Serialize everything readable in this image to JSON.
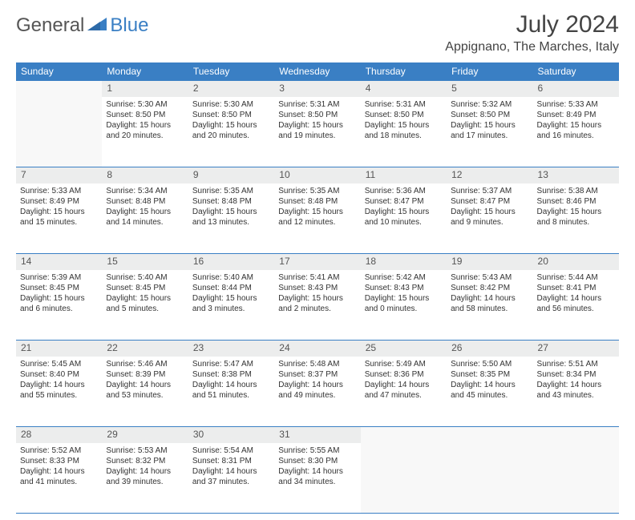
{
  "logo": {
    "general": "General",
    "blue": "Blue"
  },
  "title": "July 2024",
  "location": "Appignano, The Marches, Italy",
  "colors": {
    "header_bg": "#3a7fc4",
    "header_text": "#ffffff",
    "daynum_bg": "#eceded",
    "border": "#3a7fc4",
    "text": "#333333"
  },
  "weekday_labels": [
    "Sunday",
    "Monday",
    "Tuesday",
    "Wednesday",
    "Thursday",
    "Friday",
    "Saturday"
  ],
  "weeks": [
    [
      null,
      {
        "n": "1",
        "sr": "Sunrise: 5:30 AM",
        "ss": "Sunset: 8:50 PM",
        "d1": "Daylight: 15 hours",
        "d2": "and 20 minutes."
      },
      {
        "n": "2",
        "sr": "Sunrise: 5:30 AM",
        "ss": "Sunset: 8:50 PM",
        "d1": "Daylight: 15 hours",
        "d2": "and 20 minutes."
      },
      {
        "n": "3",
        "sr": "Sunrise: 5:31 AM",
        "ss": "Sunset: 8:50 PM",
        "d1": "Daylight: 15 hours",
        "d2": "and 19 minutes."
      },
      {
        "n": "4",
        "sr": "Sunrise: 5:31 AM",
        "ss": "Sunset: 8:50 PM",
        "d1": "Daylight: 15 hours",
        "d2": "and 18 minutes."
      },
      {
        "n": "5",
        "sr": "Sunrise: 5:32 AM",
        "ss": "Sunset: 8:50 PM",
        "d1": "Daylight: 15 hours",
        "d2": "and 17 minutes."
      },
      {
        "n": "6",
        "sr": "Sunrise: 5:33 AM",
        "ss": "Sunset: 8:49 PM",
        "d1": "Daylight: 15 hours",
        "d2": "and 16 minutes."
      }
    ],
    [
      {
        "n": "7",
        "sr": "Sunrise: 5:33 AM",
        "ss": "Sunset: 8:49 PM",
        "d1": "Daylight: 15 hours",
        "d2": "and 15 minutes."
      },
      {
        "n": "8",
        "sr": "Sunrise: 5:34 AM",
        "ss": "Sunset: 8:48 PM",
        "d1": "Daylight: 15 hours",
        "d2": "and 14 minutes."
      },
      {
        "n": "9",
        "sr": "Sunrise: 5:35 AM",
        "ss": "Sunset: 8:48 PM",
        "d1": "Daylight: 15 hours",
        "d2": "and 13 minutes."
      },
      {
        "n": "10",
        "sr": "Sunrise: 5:35 AM",
        "ss": "Sunset: 8:48 PM",
        "d1": "Daylight: 15 hours",
        "d2": "and 12 minutes."
      },
      {
        "n": "11",
        "sr": "Sunrise: 5:36 AM",
        "ss": "Sunset: 8:47 PM",
        "d1": "Daylight: 15 hours",
        "d2": "and 10 minutes."
      },
      {
        "n": "12",
        "sr": "Sunrise: 5:37 AM",
        "ss": "Sunset: 8:47 PM",
        "d1": "Daylight: 15 hours",
        "d2": "and 9 minutes."
      },
      {
        "n": "13",
        "sr": "Sunrise: 5:38 AM",
        "ss": "Sunset: 8:46 PM",
        "d1": "Daylight: 15 hours",
        "d2": "and 8 minutes."
      }
    ],
    [
      {
        "n": "14",
        "sr": "Sunrise: 5:39 AM",
        "ss": "Sunset: 8:45 PM",
        "d1": "Daylight: 15 hours",
        "d2": "and 6 minutes."
      },
      {
        "n": "15",
        "sr": "Sunrise: 5:40 AM",
        "ss": "Sunset: 8:45 PM",
        "d1": "Daylight: 15 hours",
        "d2": "and 5 minutes."
      },
      {
        "n": "16",
        "sr": "Sunrise: 5:40 AM",
        "ss": "Sunset: 8:44 PM",
        "d1": "Daylight: 15 hours",
        "d2": "and 3 minutes."
      },
      {
        "n": "17",
        "sr": "Sunrise: 5:41 AM",
        "ss": "Sunset: 8:43 PM",
        "d1": "Daylight: 15 hours",
        "d2": "and 2 minutes."
      },
      {
        "n": "18",
        "sr": "Sunrise: 5:42 AM",
        "ss": "Sunset: 8:43 PM",
        "d1": "Daylight: 15 hours",
        "d2": "and 0 minutes."
      },
      {
        "n": "19",
        "sr": "Sunrise: 5:43 AM",
        "ss": "Sunset: 8:42 PM",
        "d1": "Daylight: 14 hours",
        "d2": "and 58 minutes."
      },
      {
        "n": "20",
        "sr": "Sunrise: 5:44 AM",
        "ss": "Sunset: 8:41 PM",
        "d1": "Daylight: 14 hours",
        "d2": "and 56 minutes."
      }
    ],
    [
      {
        "n": "21",
        "sr": "Sunrise: 5:45 AM",
        "ss": "Sunset: 8:40 PM",
        "d1": "Daylight: 14 hours",
        "d2": "and 55 minutes."
      },
      {
        "n": "22",
        "sr": "Sunrise: 5:46 AM",
        "ss": "Sunset: 8:39 PM",
        "d1": "Daylight: 14 hours",
        "d2": "and 53 minutes."
      },
      {
        "n": "23",
        "sr": "Sunrise: 5:47 AM",
        "ss": "Sunset: 8:38 PM",
        "d1": "Daylight: 14 hours",
        "d2": "and 51 minutes."
      },
      {
        "n": "24",
        "sr": "Sunrise: 5:48 AM",
        "ss": "Sunset: 8:37 PM",
        "d1": "Daylight: 14 hours",
        "d2": "and 49 minutes."
      },
      {
        "n": "25",
        "sr": "Sunrise: 5:49 AM",
        "ss": "Sunset: 8:36 PM",
        "d1": "Daylight: 14 hours",
        "d2": "and 47 minutes."
      },
      {
        "n": "26",
        "sr": "Sunrise: 5:50 AM",
        "ss": "Sunset: 8:35 PM",
        "d1": "Daylight: 14 hours",
        "d2": "and 45 minutes."
      },
      {
        "n": "27",
        "sr": "Sunrise: 5:51 AM",
        "ss": "Sunset: 8:34 PM",
        "d1": "Daylight: 14 hours",
        "d2": "and 43 minutes."
      }
    ],
    [
      {
        "n": "28",
        "sr": "Sunrise: 5:52 AM",
        "ss": "Sunset: 8:33 PM",
        "d1": "Daylight: 14 hours",
        "d2": "and 41 minutes."
      },
      {
        "n": "29",
        "sr": "Sunrise: 5:53 AM",
        "ss": "Sunset: 8:32 PM",
        "d1": "Daylight: 14 hours",
        "d2": "and 39 minutes."
      },
      {
        "n": "30",
        "sr": "Sunrise: 5:54 AM",
        "ss": "Sunset: 8:31 PM",
        "d1": "Daylight: 14 hours",
        "d2": "and 37 minutes."
      },
      {
        "n": "31",
        "sr": "Sunrise: 5:55 AM",
        "ss": "Sunset: 8:30 PM",
        "d1": "Daylight: 14 hours",
        "d2": "and 34 minutes."
      },
      null,
      null,
      null
    ]
  ]
}
